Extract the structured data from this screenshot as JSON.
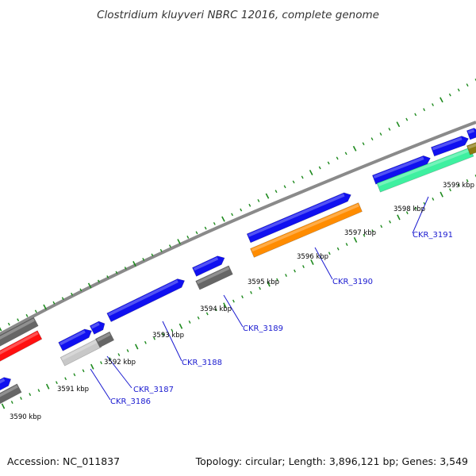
{
  "title": "Clostridium kluyveri NBRC 12016, complete genome",
  "footer": {
    "accession": "Accession: NC_011837",
    "summary": "Topology: circular; Length: 3,896,121 bp; Genes: 3,549"
  },
  "colors": {
    "backbone": "#8a8a8a",
    "tick": "#1e8a1e",
    "gene_tag": "#1a1ad0",
    "cds": "#1010f0",
    "dark_grey": "#666666",
    "light_grey": "#c8c8c8",
    "red": "#ff1010",
    "orange": "#ff8c00",
    "aquamarine": "#3ef0a0",
    "olive": "#8b7a10"
  },
  "scale_labels": [
    "3590 kbp",
    "3591 kbp",
    "3592 kbp",
    "3593 kbp",
    "3594 kbp",
    "3595 kbp",
    "3596 kbp",
    "3597 kbp",
    "3598 kbp",
    "3599 kbp"
  ],
  "gene_tags": [
    "CKR_3186",
    "CKR_3187",
    "CKR_3188",
    "CKR_3189",
    "CKR_3190",
    "CKR_3191"
  ]
}
